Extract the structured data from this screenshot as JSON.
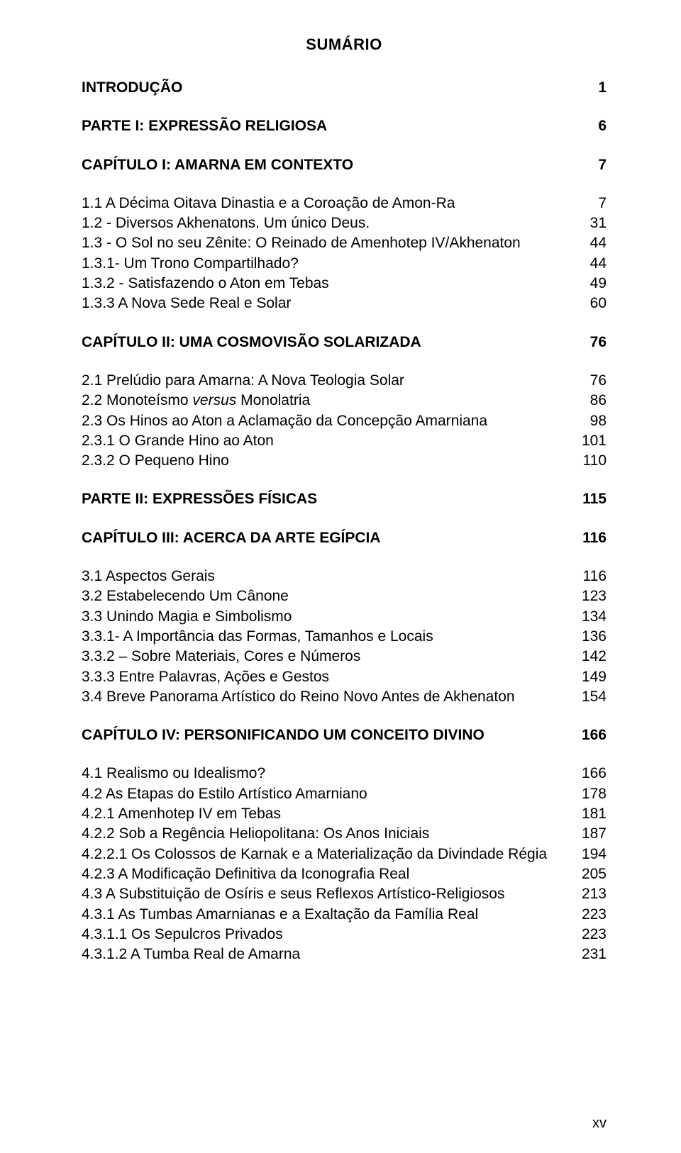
{
  "title": "SUMÁRIO",
  "page_number": "xv",
  "font": {
    "body_size_pt": 16,
    "title_size_pt": 16,
    "family": "Arial"
  },
  "colors": {
    "text": "#000000",
    "background": "#ffffff"
  },
  "entries": [
    {
      "label": "INTRODUÇÃO",
      "page": "1",
      "bold": true,
      "gap_after": true
    },
    {
      "label": "PARTE I: EXPRESSÃO RELIGIOSA",
      "page": "6",
      "bold": true,
      "gap_after": true
    },
    {
      "label": "CAPÍTULO I: AMARNA EM CONTEXTO",
      "page": "7",
      "bold": true,
      "gap_after": true
    },
    {
      "label": "1.1 A Décima Oitava Dinastia e a Coroação de Amon-Ra",
      "page": "7"
    },
    {
      "label": "1.2 - Diversos Akhenatons. Um único Deus.",
      "page": "31"
    },
    {
      "label": "1.3 - O Sol no seu Zênite: O Reinado de Amenhotep IV/Akhenaton",
      "page": "44"
    },
    {
      "label": "1.3.1- Um Trono Compartilhado?",
      "page": "44"
    },
    {
      "label": "1.3.2 - Satisfazendo o Aton em Tebas",
      "page": "49"
    },
    {
      "label": "1.3.3 A Nova Sede Real e Solar",
      "page": "60",
      "gap_after": true
    },
    {
      "label": "CAPÍTULO II: UMA COSMOVISÃO SOLARIZADA",
      "page": "76",
      "bold": true,
      "gap_after": true
    },
    {
      "label": "2.1 Prelúdio para Amarna: A Nova Teologia Solar",
      "page": "76"
    },
    {
      "label_parts": [
        {
          "text": "2.2 Monoteísmo "
        },
        {
          "text": "versus",
          "italic": true
        },
        {
          "text": " Monolatria"
        }
      ],
      "page": "86"
    },
    {
      "label": "2.3 Os Hinos ao Aton a Aclamação da Concepção Amarniana",
      "page": "98"
    },
    {
      "label": "2.3.1 O Grande Hino ao Aton",
      "page": "101"
    },
    {
      "label": "2.3.2 O Pequeno Hino",
      "page": "110",
      "gap_after": true
    },
    {
      "label": "PARTE II: EXPRESSÕES FÍSICAS",
      "page": "115",
      "bold": true,
      "gap_after": true
    },
    {
      "label": "CAPÍTULO III: ACERCA DA ARTE EGÍPCIA",
      "page": "116",
      "bold": true,
      "gap_after": true
    },
    {
      "label": "3.1 Aspectos Gerais",
      "page": "116"
    },
    {
      "label": "3.2 Estabelecendo Um Cânone",
      "page": "123"
    },
    {
      "label": "3.3 Unindo Magia e Simbolismo",
      "page": "134"
    },
    {
      "label": "3.3.1- A Importância das Formas, Tamanhos e Locais",
      "page": "136"
    },
    {
      "label": "3.3.2 – Sobre Materiais, Cores e Números",
      "page": "142"
    },
    {
      "label": "3.3.3 Entre Palavras, Ações e Gestos",
      "page": "149"
    },
    {
      "label": "3.4 Breve Panorama Artístico do Reino Novo Antes de Akhenaton",
      "page": "154",
      "gap_after": true
    },
    {
      "label": "CAPÍTULO IV: PERSONIFICANDO UM CONCEITO DIVINO",
      "page": "166",
      "bold": true,
      "gap_after": true
    },
    {
      "label": "4.1 Realismo ou Idealismo?",
      "page": "166"
    },
    {
      "label": "4.2 As Etapas do Estilo Artístico Amarniano",
      "page": "178"
    },
    {
      "label": "4.2.1 Amenhotep IV em Tebas",
      "page": "181"
    },
    {
      "label": "4.2.2 Sob a Regência Heliopolitana: Os Anos Iniciais",
      "page": "187"
    },
    {
      "label": "4.2.2.1 Os Colossos de Karnak e a Materialização da Divindade Régia",
      "page": "194"
    },
    {
      "label": "4.2.3 A Modificação Definitiva da Iconografia Real",
      "page": "205"
    },
    {
      "label": "4.3 A Substituição de Osíris e seus Reflexos Artístico-Religiosos",
      "page": "213"
    },
    {
      "label": "4.3.1 As Tumbas Amarnianas e a Exaltação da Família Real",
      "page": "223"
    },
    {
      "label": "4.3.1.1 Os Sepulcros Privados",
      "page": "223"
    },
    {
      "label": "4.3.1.2 A Tumba Real de Amarna",
      "page": "231"
    }
  ]
}
